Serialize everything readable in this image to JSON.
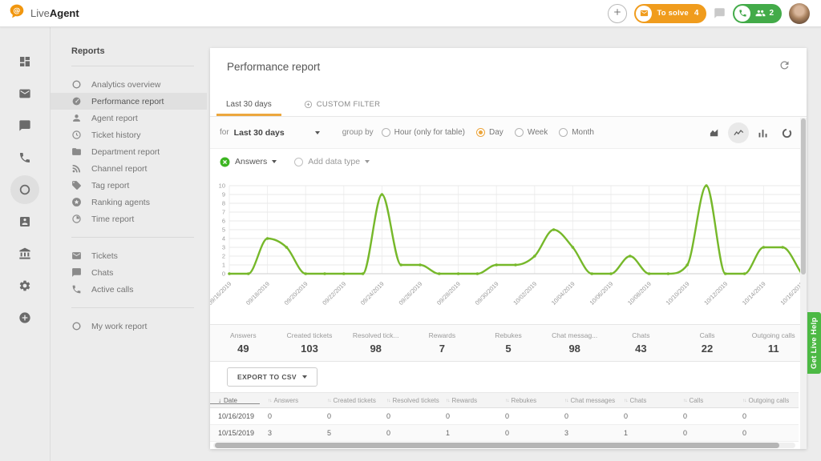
{
  "app": {
    "brand_live": "Live",
    "brand_agent": "Agent"
  },
  "colors": {
    "accent_orange": "#f09c1d",
    "tab_underline_orange": "#eca73e",
    "chart_green": "#76b82a",
    "pill_green": "#43ab49",
    "help_green": "#4cb944",
    "chip_green": "#3cb521"
  },
  "topbar": {
    "to_solve_label": "To solve",
    "to_solve_count": "4",
    "calls_count": "2"
  },
  "nav_rail": {
    "items": [
      {
        "name": "dashboard",
        "icon": "dashboard",
        "active": false
      },
      {
        "name": "tickets",
        "icon": "mail",
        "active": false
      },
      {
        "name": "chats",
        "icon": "chat",
        "active": false
      },
      {
        "name": "calls",
        "icon": "phone",
        "active": false
      },
      {
        "name": "reports",
        "icon": "ring",
        "active": true
      },
      {
        "name": "customers",
        "icon": "badge",
        "active": false
      },
      {
        "name": "billing",
        "icon": "bank",
        "active": false
      },
      {
        "name": "configuration",
        "icon": "gear",
        "active": false
      },
      {
        "name": "upgrade",
        "icon": "add-circle",
        "active": false
      }
    ]
  },
  "sidebar": {
    "title": "Reports",
    "sections": [
      {
        "items": [
          {
            "icon": "ring",
            "label": "Analytics overview",
            "active": false
          },
          {
            "icon": "gauge",
            "label": "Performance report",
            "active": true
          },
          {
            "icon": "person",
            "label": "Agent report",
            "active": false
          },
          {
            "icon": "history",
            "label": "Ticket history",
            "active": false
          },
          {
            "icon": "folder",
            "label": "Department report",
            "active": false
          },
          {
            "icon": "rss",
            "label": "Channel report",
            "active": false
          },
          {
            "icon": "tag",
            "label": "Tag report",
            "active": false
          },
          {
            "icon": "circle-star",
            "label": "Ranking agents",
            "active": false
          },
          {
            "icon": "time",
            "label": "Time report",
            "active": false
          }
        ]
      },
      {
        "items": [
          {
            "icon": "mail",
            "label": "Tickets",
            "active": false
          },
          {
            "icon": "chat",
            "label": "Chats",
            "active": false
          },
          {
            "icon": "phone",
            "label": "Active calls",
            "active": false
          }
        ]
      },
      {
        "items": [
          {
            "icon": "ring",
            "label": "My work report",
            "active": false
          }
        ]
      }
    ]
  },
  "report": {
    "title": "Performance report",
    "tabs": [
      {
        "label": "Last 30 days",
        "active": true
      },
      {
        "label": "CUSTOM FILTER",
        "active": false
      }
    ],
    "filter": {
      "for_label": "for",
      "range_value": "Last 30 days",
      "group_by_label": "group by",
      "options": [
        {
          "label": "Hour (only for table)",
          "selected": false
        },
        {
          "label": "Day",
          "selected": true
        },
        {
          "label": "Week",
          "selected": false
        },
        {
          "label": "Month",
          "selected": false
        }
      ]
    },
    "chart_toolbar": {
      "buttons": [
        {
          "name": "area-chart",
          "active": false
        },
        {
          "name": "line-chart",
          "active": true
        },
        {
          "name": "bar-chart",
          "active": false
        },
        {
          "name": "donut-chart",
          "active": false
        }
      ]
    },
    "datatypes": {
      "selected_label": "Answers",
      "add_label": "Add data type"
    },
    "stats": [
      {
        "label": "Answers",
        "value": "49"
      },
      {
        "label": "Created tickets",
        "value": "103"
      },
      {
        "label": "Resolved tick...",
        "value": "98"
      },
      {
        "label": "Rewards",
        "value": "7"
      },
      {
        "label": "Rebukes",
        "value": "5"
      },
      {
        "label": "Chat messag...",
        "value": "98"
      },
      {
        "label": "Chats",
        "value": "43"
      },
      {
        "label": "Calls",
        "value": "22"
      },
      {
        "label": "Outgoing calls",
        "value": "11"
      }
    ],
    "export_label": "EXPORT TO CSV",
    "table": {
      "columns": [
        "Date",
        "Answers",
        "Created tickets",
        "Resolved tickets",
        "Rewards",
        "Rebukes",
        "Chat messages",
        "Chats",
        "Calls",
        "Outgoing calls"
      ],
      "sorted_column": "Date",
      "rows": [
        {
          "date": "10/16/2019",
          "values": [
            "0",
            "0",
            "0",
            "0",
            "0",
            "0",
            "0",
            "0",
            "0"
          ]
        },
        {
          "date": "10/15/2019",
          "values": [
            "3",
            "5",
            "0",
            "1",
            "0",
            "3",
            "1",
            "0",
            "0"
          ]
        }
      ]
    }
  },
  "chart_data": {
    "type": "line",
    "x": [
      "09/16/2019",
      "09/17/2019",
      "09/18/2019",
      "09/19/2019",
      "09/20/2019",
      "09/21/2019",
      "09/22/2019",
      "09/23/2019",
      "09/24/2019",
      "09/25/2019",
      "09/26/2019",
      "09/27/2019",
      "09/28/2019",
      "09/29/2019",
      "09/30/2019",
      "10/01/2019",
      "10/02/2019",
      "10/03/2019",
      "10/04/2019",
      "10/05/2019",
      "10/06/2019",
      "10/07/2019",
      "10/08/2019",
      "10/09/2019",
      "10/10/2019",
      "10/11/2019",
      "10/12/2019",
      "10/13/2019",
      "10/14/2019",
      "10/15/2019",
      "10/16/2019"
    ],
    "x_label_interval": 2,
    "series": [
      {
        "name": "Answers",
        "color": "#76b82a",
        "values": [
          0,
          0,
          4,
          3,
          0,
          0,
          0,
          0,
          9,
          1,
          1,
          0,
          0,
          0,
          1,
          1,
          2,
          5,
          3,
          0,
          0,
          2,
          0,
          0,
          1,
          10,
          0,
          0,
          3,
          3,
          0
        ]
      }
    ],
    "ylim": [
      0,
      10
    ],
    "yticks": [
      0,
      1,
      2,
      3,
      4,
      5,
      6,
      7,
      8,
      9,
      10
    ],
    "grid": true,
    "legend_position": "none"
  },
  "help_tab": {
    "label": "Get Live Help"
  }
}
